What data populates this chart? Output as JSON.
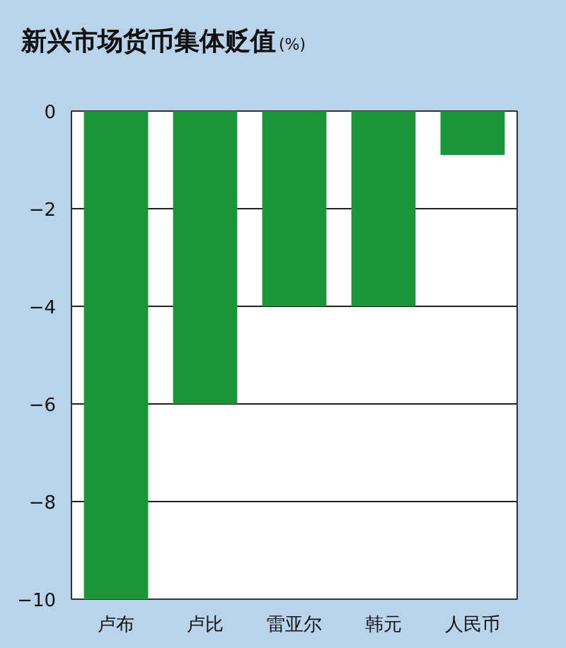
{
  "chart_data": {
    "type": "bar",
    "title": "新兴市场货币集体贬值",
    "ylabel": "(%)",
    "categories": [
      "卢布",
      "卢比",
      "雷亚尔",
      "韩元",
      "人民币"
    ],
    "values": [
      -10,
      -6,
      -4,
      -4,
      -0.9
    ],
    "color": "#1a9638",
    "ylim": [
      -10,
      0
    ],
    "yticks": [
      0,
      -2,
      -4,
      -6,
      -8,
      -10
    ],
    "grid": "y"
  }
}
